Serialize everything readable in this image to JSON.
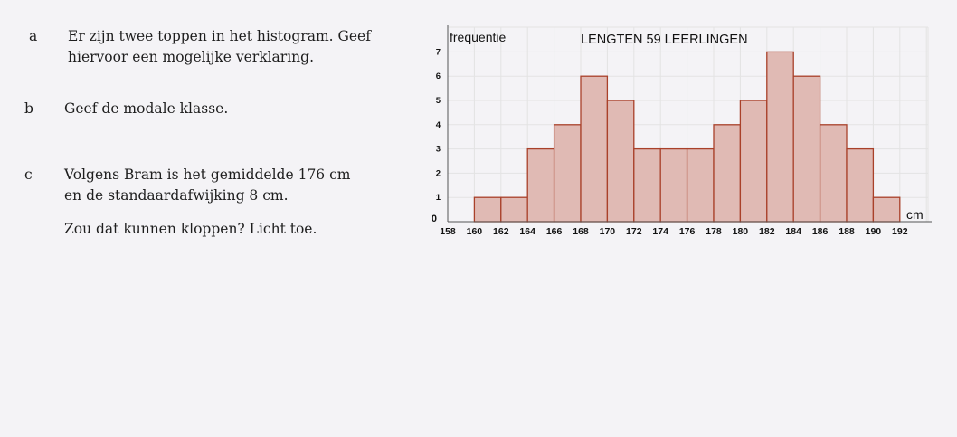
{
  "questions": [
    {
      "letter": "a",
      "lines": [
        "Er zijn twee toppen in het histogram. Geef",
        "hiervoor een mogelijke verklaring."
      ]
    },
    {
      "letter": "b",
      "lines": [
        "Geef de modale klasse."
      ]
    },
    {
      "letter": "c",
      "lines": [
        "Volgens Bram is het gemiddelde 176 cm",
        "en de standaardafwijking 8 cm.",
        "Zou dat kunnen kloppen? Licht toe."
      ]
    }
  ],
  "chart_data": {
    "type": "bar",
    "title": "LENGTEN 59 LEERLINGEN",
    "ylabel": "frequentie",
    "xlabel": "cm",
    "bin_edges": [
      160,
      162,
      164,
      166,
      168,
      170,
      172,
      174,
      176,
      178,
      180,
      182,
      184,
      186,
      188,
      190,
      192
    ],
    "values": [
      1,
      1,
      3,
      4,
      6,
      5,
      3,
      3,
      3,
      4,
      5,
      7,
      6,
      4,
      3,
      1
    ],
    "xticks": [
      158,
      160,
      162,
      164,
      166,
      168,
      170,
      172,
      174,
      176,
      178,
      180,
      182,
      184,
      186,
      188,
      190,
      192
    ],
    "yticks": [
      0,
      1,
      2,
      3,
      4,
      5,
      6,
      7
    ],
    "xlim": [
      158,
      192
    ],
    "ylim": [
      0,
      7
    ],
    "grid": true,
    "bar_fill": "#e0bab4",
    "bar_edge": "#a9412a"
  }
}
